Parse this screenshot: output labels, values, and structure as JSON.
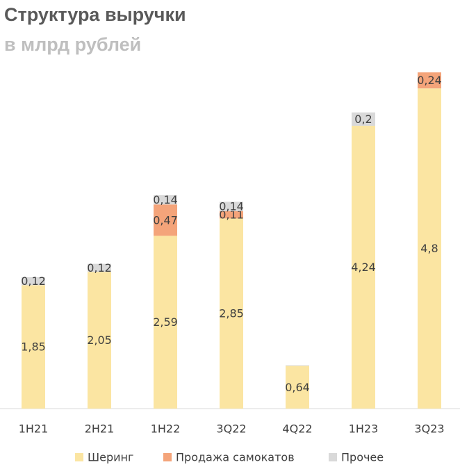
{
  "chart_data": {
    "type": "stacked_bar",
    "title": "Структура выручки",
    "subtitle": "в млрд рублей",
    "categories": [
      "1H21",
      "2H21",
      "1H22",
      "3Q22",
      "4Q22",
      "1H23",
      "3Q23"
    ],
    "series": [
      {
        "name": "Шеринг",
        "color": "#FBE5A2",
        "values": [
          1.85,
          2.05,
          2.59,
          2.85,
          0.64,
          4.24,
          4.8
        ],
        "value_labels": [
          "1,85",
          "2,05",
          "2,59",
          "2,85",
          "0,64",
          "4,24",
          "4,8"
        ]
      },
      {
        "name": "Продажа самокатов",
        "color": "#F4A47A",
        "values": [
          null,
          null,
          0.47,
          0.11,
          null,
          null,
          0.24
        ],
        "value_labels": [
          null,
          null,
          "0,47",
          "0,11",
          null,
          null,
          "0,24"
        ]
      },
      {
        "name": "Прочее",
        "color": "#D9D9D9",
        "values": [
          0.12,
          0.12,
          0.14,
          0.14,
          0.01,
          0.2,
          null
        ],
        "value_labels": [
          "0,12",
          "0,12",
          "0,14",
          "0,14",
          null,
          "0,2",
          null
        ]
      }
    ],
    "legend": "bottom"
  }
}
